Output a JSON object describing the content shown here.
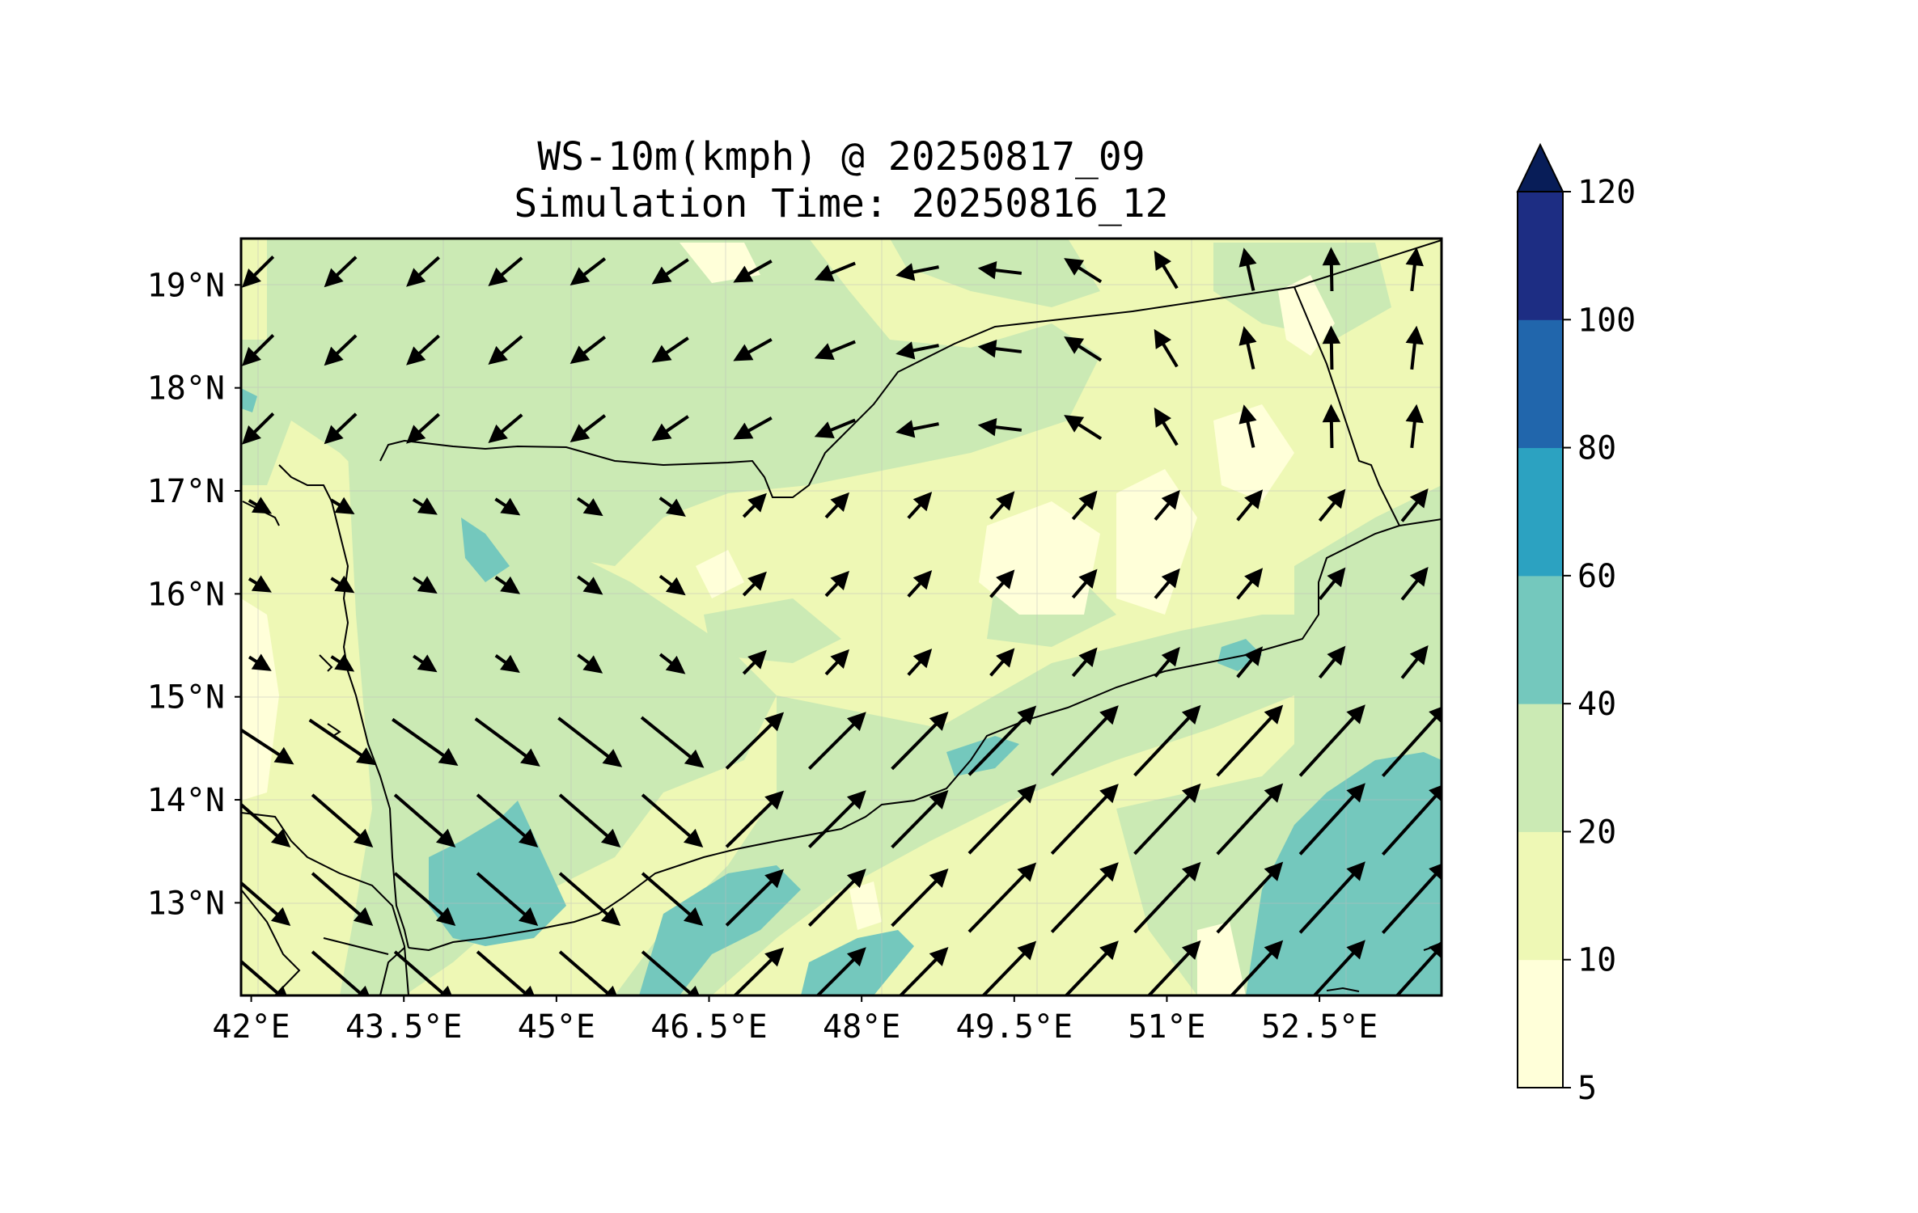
{
  "title": {
    "line1": "WS-10m(kmph) @ 20250817_09",
    "line2": "Simulation Time: 20250816_12"
  },
  "map": {
    "lon_range": [
      41.9,
      53.7
    ],
    "lat_range": [
      12.1,
      19.45
    ],
    "lon_ticks": [
      {
        "value": 42.0,
        "label": "42°E"
      },
      {
        "value": 43.5,
        "label": "43.5°E"
      },
      {
        "value": 45.0,
        "label": "45°E"
      },
      {
        "value": 46.5,
        "label": "46.5°E"
      },
      {
        "value": 48.0,
        "label": "48°E"
      },
      {
        "value": 49.5,
        "label": "49.5°E"
      },
      {
        "value": 51.0,
        "label": "51°E"
      },
      {
        "value": 52.5,
        "label": "52.5°E"
      }
    ],
    "lat_ticks": [
      {
        "value": 13,
        "label": "13°N"
      },
      {
        "value": 14,
        "label": "14°N"
      },
      {
        "value": 15,
        "label": "15°N"
      },
      {
        "value": 16,
        "label": "16°N"
      },
      {
        "value": 17,
        "label": "17°N"
      },
      {
        "value": 18,
        "label": "18°N"
      },
      {
        "value": 19,
        "label": "19°N"
      }
    ]
  },
  "colorbar": {
    "levels": [
      {
        "label": "5",
        "color": "#ffffd9"
      },
      {
        "label": "10",
        "color": "#eef8b5"
      },
      {
        "label": "20",
        "color": "#cbeab4"
      },
      {
        "label": "40",
        "color": "#74c8bd"
      },
      {
        "label": "60",
        "color": "#2ca2c1"
      },
      {
        "label": "80",
        "color": "#2166ac"
      },
      {
        "label": "100",
        "color": "#1d2d83"
      },
      {
        "label": "120",
        "color": "#081d58"
      }
    ]
  }
}
